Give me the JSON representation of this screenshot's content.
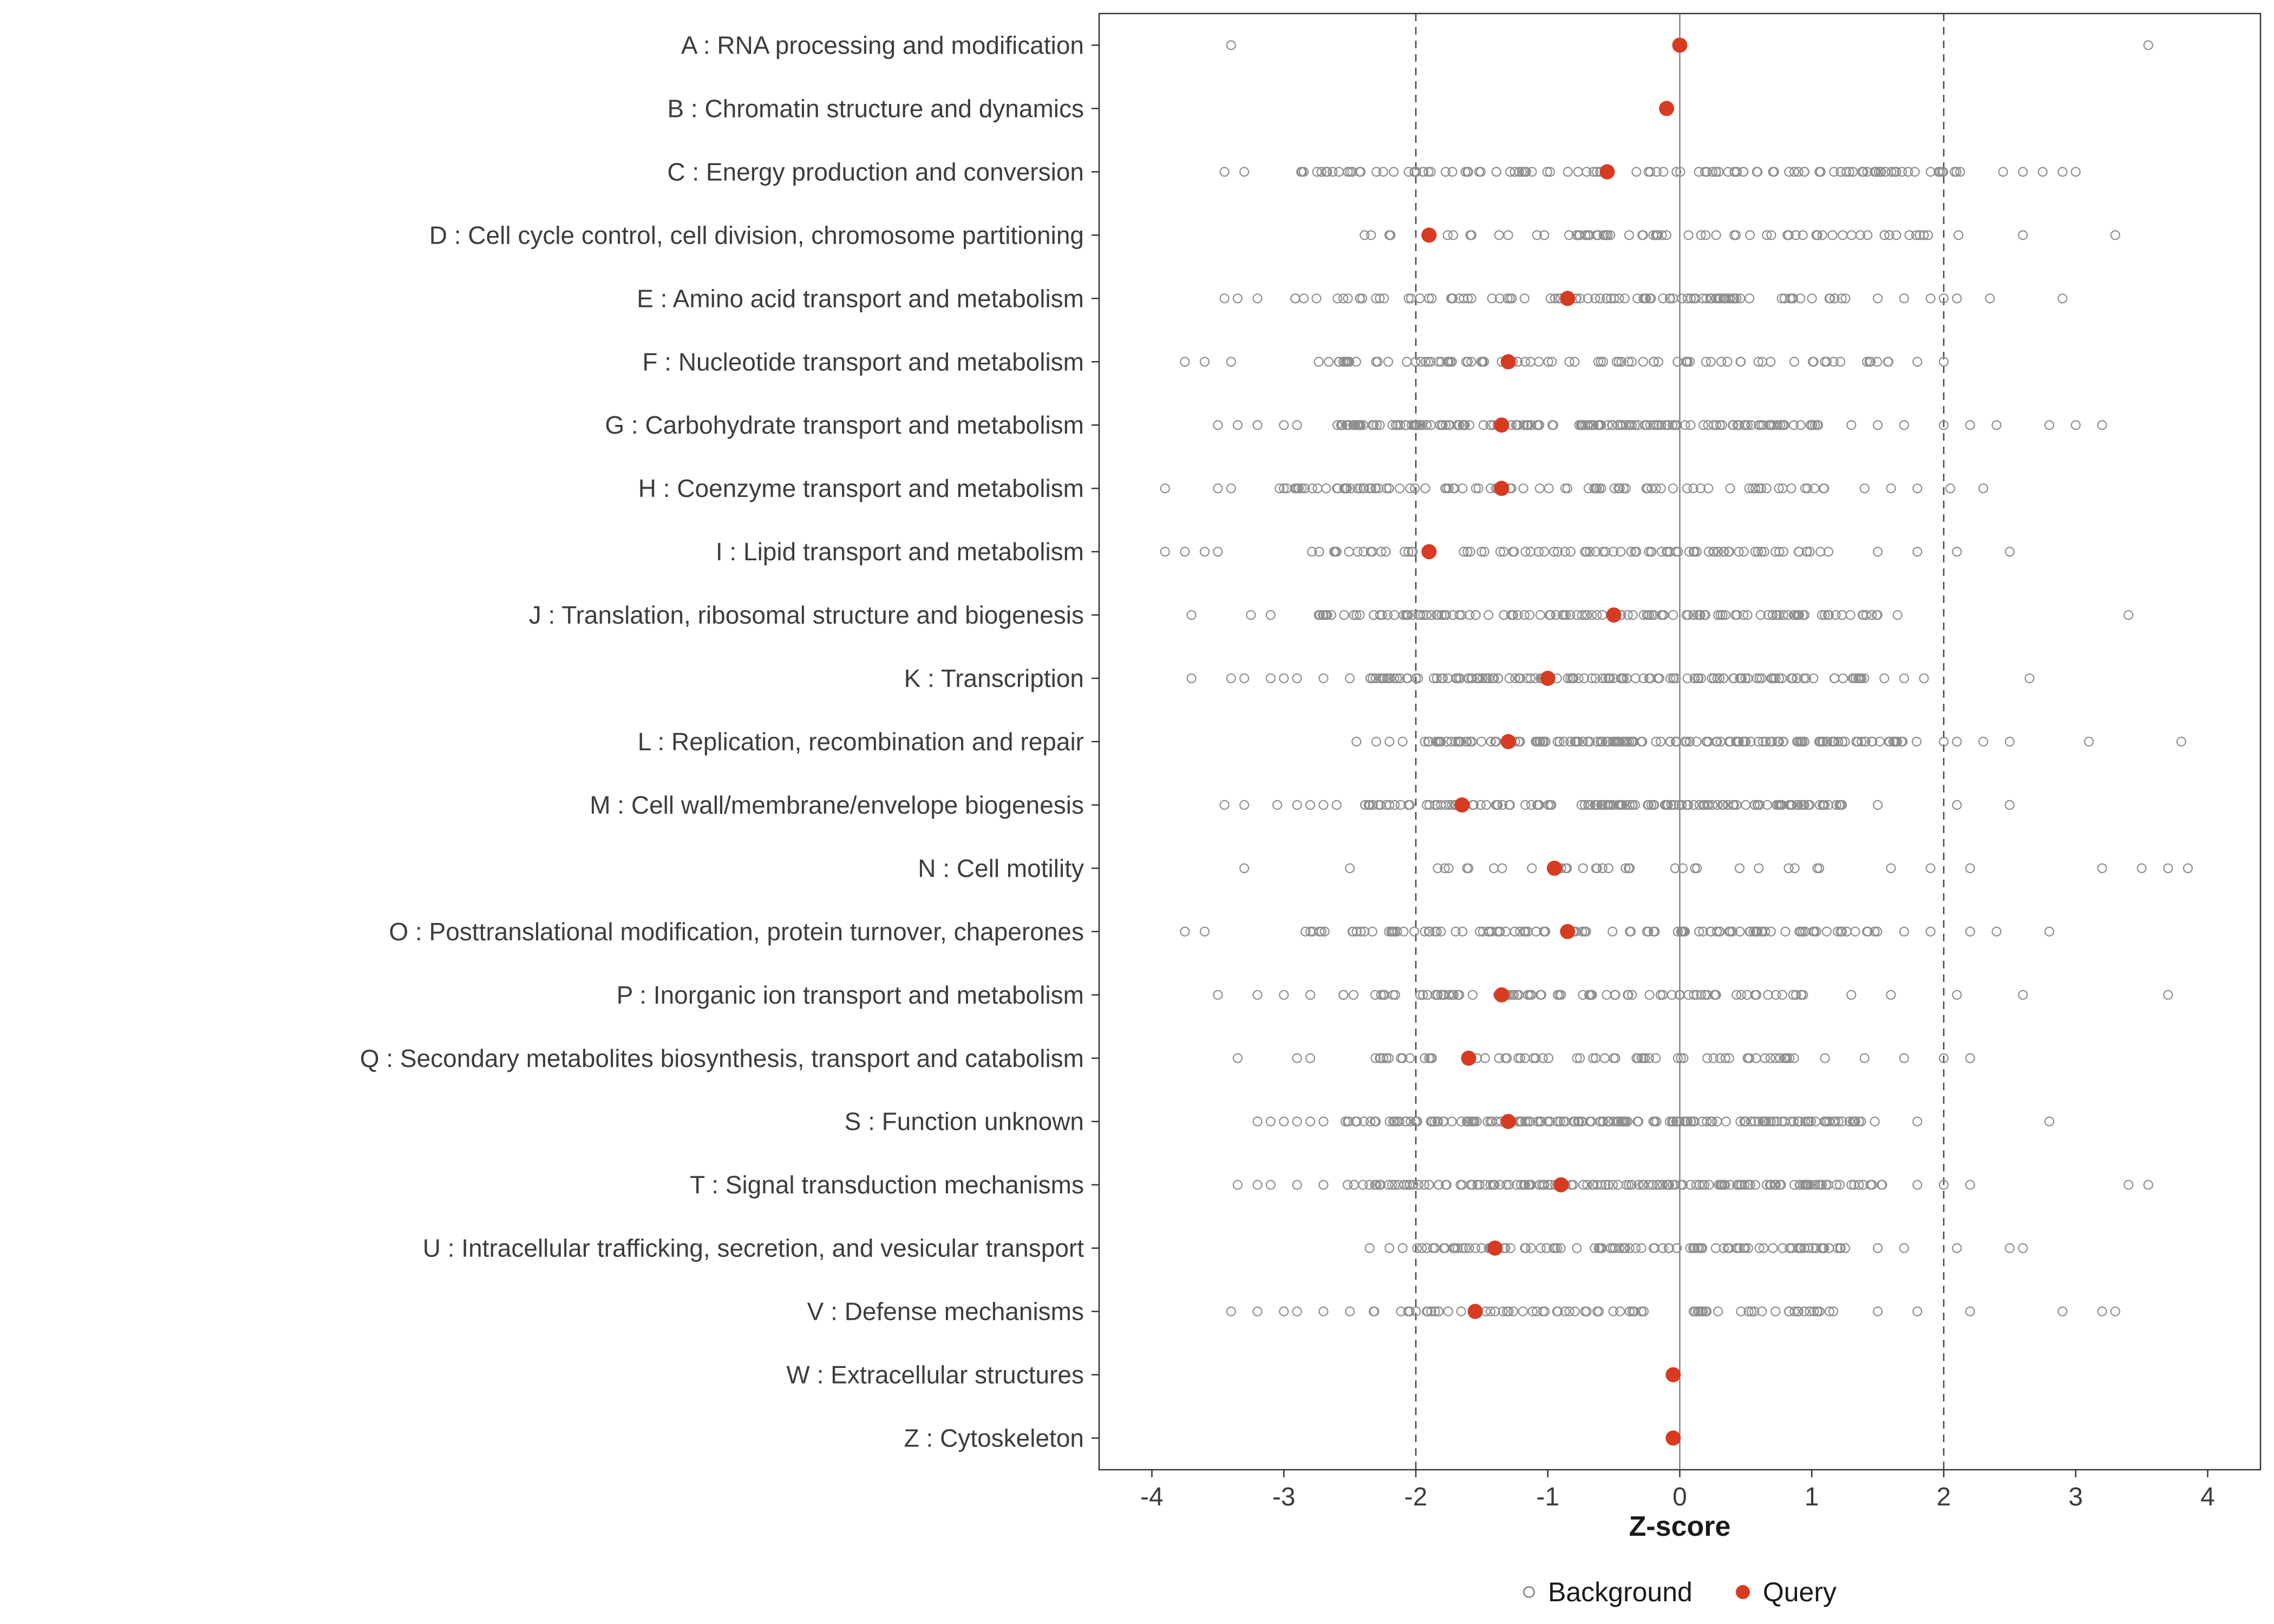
{
  "colors": {
    "query": "#d73b21",
    "background_stroke": "#8f8f8f",
    "axis_text": "#3d3d3d",
    "panel_border": "#333333",
    "zero_line": "#666666",
    "dashed_line": "#444444"
  },
  "chart_data": {
    "type": "scatter",
    "title": "",
    "xlabel": "Z-score",
    "ylabel": "",
    "xlim": [
      -4.4,
      4.4
    ],
    "xticks": [
      -4,
      -3,
      -2,
      -1,
      0,
      1,
      2,
      3,
      4
    ],
    "grid": "off",
    "reference_lines": {
      "dashed": [
        -2,
        2
      ],
      "solid": [
        0
      ]
    },
    "legend_position": "bottom",
    "legend": [
      {
        "name": "Background",
        "marker": "open-circle",
        "color": "#8f8f8f"
      },
      {
        "name": "Query",
        "marker": "filled-circle",
        "color": "#d73b21"
      }
    ],
    "background_render": "approximate",
    "categories": [
      {
        "label": "A : RNA processing and modification",
        "query": 0.0,
        "bg": {
          "n": 0,
          "dense": null,
          "outliers": [
            -3.4,
            3.55
          ]
        }
      },
      {
        "label": "B : Chromatin structure and dynamics",
        "query": -0.1,
        "bg": {
          "n": 0,
          "dense": null,
          "outliers": []
        }
      },
      {
        "label": "C : Energy production and conversion",
        "query": -0.55,
        "bg": {
          "n": 115,
          "dense": [
            -2.95,
            2.15
          ],
          "outliers": [
            -3.45,
            -3.3,
            2.45,
            2.6,
            2.75,
            2.9,
            3.0
          ]
        }
      },
      {
        "label": "D : Cell cycle control, cell division, chromosome partitioning",
        "query": -1.9,
        "bg": {
          "n": 70,
          "dense": [
            -2.55,
            2.2
          ],
          "outliers": [
            2.6,
            3.3
          ]
        }
      },
      {
        "label": "E : Amino acid transport and metabolism",
        "query": -0.85,
        "bg": {
          "n": 100,
          "dense": [
            -3.0,
            1.3
          ],
          "outliers": [
            -3.45,
            -3.35,
            -3.2,
            1.5,
            1.7,
            1.9,
            2.0,
            2.1,
            2.35,
            2.9
          ]
        }
      },
      {
        "label": "F : Nucleotide transport and metabolism",
        "query": -1.3,
        "bg": {
          "n": 85,
          "dense": [
            -2.85,
            1.6
          ],
          "outliers": [
            -3.75,
            -3.6,
            -3.4,
            1.8,
            2.0
          ]
        }
      },
      {
        "label": "G : Carbohydrate transport and metabolism",
        "query": -1.35,
        "bg": {
          "n": 160,
          "dense": [
            -2.6,
            1.05
          ],
          "outliers": [
            -3.5,
            -3.35,
            -3.2,
            -3.0,
            -2.9,
            1.3,
            1.5,
            1.7,
            2.0,
            2.2,
            2.4,
            2.8,
            3.0,
            3.2
          ]
        }
      },
      {
        "label": "H : Coenzyme transport and metabolism",
        "query": -1.35,
        "bg": {
          "n": 95,
          "dense": [
            -3.05,
            1.1
          ],
          "outliers": [
            -3.9,
            -3.5,
            -3.4,
            1.4,
            1.6,
            1.8,
            2.05,
            2.3
          ]
        }
      },
      {
        "label": "I : Lipid transport and metabolism",
        "query": -1.9,
        "bg": {
          "n": 85,
          "dense": [
            -2.9,
            1.2
          ],
          "outliers": [
            -3.9,
            -3.75,
            -3.6,
            -3.5,
            1.5,
            1.8,
            2.1,
            2.5
          ]
        }
      },
      {
        "label": "J : Translation, ribosomal structure and biogenesis",
        "query": -0.5,
        "bg": {
          "n": 130,
          "dense": [
            -2.75,
            1.5
          ],
          "outliers": [
            -3.7,
            -3.25,
            -3.1,
            1.65,
            3.4
          ]
        }
      },
      {
        "label": "K : Transcription",
        "query": -1.0,
        "bg": {
          "n": 140,
          "dense": [
            -2.35,
            1.4
          ],
          "outliers": [
            -3.7,
            -3.4,
            -3.3,
            -3.1,
            -3.0,
            -2.9,
            -2.7,
            -2.5,
            1.55,
            1.7,
            1.85,
            2.65
          ]
        }
      },
      {
        "label": "L : Replication, recombination and repair",
        "query": -1.3,
        "bg": {
          "n": 155,
          "dense": [
            -1.95,
            1.8
          ],
          "outliers": [
            -2.45,
            -2.3,
            -2.2,
            -2.1,
            2.0,
            2.1,
            2.3,
            2.5,
            3.1,
            3.8
          ]
        }
      },
      {
        "label": "M : Cell wall/membrane/envelope biogenesis",
        "query": -1.65,
        "bg": {
          "n": 135,
          "dense": [
            -2.45,
            1.25
          ],
          "outliers": [
            -3.45,
            -3.3,
            -3.05,
            -2.9,
            -2.8,
            -2.7,
            -2.6,
            1.5,
            2.1,
            2.5
          ]
        }
      },
      {
        "label": "N : Cell motility",
        "query": -0.95,
        "bg": {
          "n": 32,
          "dense": [
            -2.0,
            1.3
          ],
          "outliers": [
            -3.3,
            -2.5,
            1.6,
            1.9,
            2.2,
            3.2,
            3.5,
            3.7,
            3.85
          ]
        }
      },
      {
        "label": "O : Posttranslational modification, protein turnover, chaperones",
        "query": -0.85,
        "bg": {
          "n": 110,
          "dense": [
            -2.9,
            1.5
          ],
          "outliers": [
            -3.75,
            -3.6,
            1.7,
            1.9,
            2.2,
            2.4,
            2.8
          ]
        }
      },
      {
        "label": "P : Inorganic ion transport and metabolism",
        "query": -1.35,
        "bg": {
          "n": 85,
          "dense": [
            -2.6,
            1.0
          ],
          "outliers": [
            -3.5,
            -3.2,
            -3.0,
            -2.8,
            1.3,
            1.6,
            2.1,
            2.6,
            3.7
          ]
        }
      },
      {
        "label": "Q : Secondary metabolites biosynthesis, transport and catabolism",
        "query": -1.6,
        "bg": {
          "n": 60,
          "dense": [
            -2.45,
            0.9
          ],
          "outliers": [
            -3.35,
            -2.9,
            -2.8,
            1.1,
            1.4,
            1.7,
            2.0,
            2.2
          ]
        }
      },
      {
        "label": "S : Function unknown",
        "query": -1.3,
        "bg": {
          "n": 170,
          "dense": [
            -2.55,
            1.5
          ],
          "outliers": [
            -3.2,
            -3.1,
            -3.0,
            -2.9,
            -2.8,
            -2.7,
            1.8,
            2.8
          ]
        }
      },
      {
        "label": "T : Signal transduction mechanisms",
        "query": -0.9,
        "bg": {
          "n": 155,
          "dense": [
            -2.55,
            1.6
          ],
          "outliers": [
            -3.35,
            -3.2,
            -3.1,
            -2.9,
            -2.7,
            1.8,
            2.0,
            2.2,
            3.4,
            3.55
          ]
        }
      },
      {
        "label": "U : Intracellular trafficking, secretion, and vesicular transport",
        "query": -1.4,
        "bg": {
          "n": 95,
          "dense": [
            -2.05,
            1.3
          ],
          "outliers": [
            -2.35,
            -2.2,
            -2.1,
            1.5,
            1.7,
            2.1,
            2.5,
            2.6
          ]
        }
      },
      {
        "label": "V : Defense mechanisms",
        "query": -1.55,
        "bg": {
          "n": 75,
          "dense": [
            -2.35,
            1.2
          ],
          "outliers": [
            -3.4,
            -3.2,
            -3.0,
            -2.9,
            -2.7,
            -2.5,
            1.5,
            1.8,
            2.2,
            2.9,
            3.2,
            3.3
          ]
        }
      },
      {
        "label": "W : Extracellular structures",
        "query": -0.05,
        "bg": {
          "n": 0,
          "dense": null,
          "outliers": []
        }
      },
      {
        "label": "Z : Cytoskeleton",
        "query": -0.05,
        "bg": {
          "n": 0,
          "dense": null,
          "outliers": []
        }
      }
    ]
  }
}
